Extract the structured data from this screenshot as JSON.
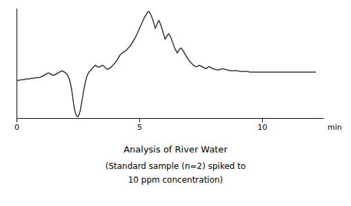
{
  "chart_data": {
    "type": "line",
    "title": "Analysis of River Water",
    "subtitle": [
      "(Standard sample (n=2) spiked to",
      "10 ppm concentration)"
    ],
    "xlabel": "min",
    "color": "#333333",
    "xlim": [
      0,
      12.5
    ],
    "ylim": [
      -0.55,
      1.05
    ],
    "xticks": [
      0,
      5,
      10
    ],
    "tick_labels": "x",
    "grid": false,
    "x": [
      0.0,
      0.1,
      0.2,
      0.3,
      0.4,
      0.5,
      0.6,
      0.7,
      0.8,
      0.9,
      1.0,
      1.05,
      1.1,
      1.15,
      1.2,
      1.25,
      1.3,
      1.35,
      1.4,
      1.45,
      1.5,
      1.55,
      1.6,
      1.65,
      1.7,
      1.75,
      1.8,
      1.85,
      1.9,
      1.95,
      2.0,
      2.05,
      2.1,
      2.15,
      2.2,
      2.25,
      2.3,
      2.35,
      2.4,
      2.45,
      2.5,
      2.55,
      2.6,
      2.65,
      2.7,
      2.75,
      2.8,
      2.85,
      2.9,
      2.95,
      3.0,
      3.05,
      3.1,
      3.15,
      3.2,
      3.25,
      3.3,
      3.35,
      3.4,
      3.45,
      3.5,
      3.55,
      3.6,
      3.65,
      3.7,
      3.75,
      3.8,
      3.85,
      3.9,
      3.95,
      4.0,
      4.05,
      4.1,
      4.15,
      4.2,
      4.25,
      4.3,
      4.35,
      4.4,
      4.45,
      4.5,
      4.55,
      4.6,
      4.65,
      4.7,
      4.75,
      4.8,
      4.85,
      4.9,
      4.95,
      5.0,
      5.05,
      5.1,
      5.15,
      5.2,
      5.25,
      5.3,
      5.35,
      5.4,
      5.45,
      5.5,
      5.55,
      5.6,
      5.65,
      5.7,
      5.75,
      5.8,
      5.85,
      5.9,
      5.95,
      6.0,
      6.05,
      6.1,
      6.15,
      6.2,
      6.25,
      6.3,
      6.35,
      6.4,
      6.45,
      6.5,
      6.55,
      6.6,
      6.65,
      6.7,
      6.75,
      6.8,
      6.85,
      6.9,
      6.95,
      7.0,
      7.05,
      7.1,
      7.15,
      7.2,
      7.25,
      7.3,
      7.35,
      7.4,
      7.45,
      7.5,
      7.55,
      7.6,
      7.65,
      7.7,
      7.75,
      7.8,
      7.85,
      7.9,
      7.95,
      8.0,
      8.1,
      8.2,
      8.3,
      8.4,
      8.5,
      8.6,
      8.7,
      8.8,
      8.9,
      9.0,
      9.1,
      9.2,
      9.3,
      9.4,
      9.5,
      9.6,
      9.7,
      9.8,
      9.9,
      10.0,
      10.1,
      10.2,
      10.3,
      10.4,
      10.5,
      10.6,
      10.7,
      10.8,
      10.9,
      11.0,
      11.1,
      11.2,
      11.3,
      11.4,
      11.5,
      11.6,
      11.7,
      11.8,
      11.9,
      12.0,
      12.2
    ],
    "values": [
      0.0,
      0.0,
      0.01,
      0.01,
      0.02,
      0.02,
      0.03,
      0.03,
      0.04,
      0.04,
      0.05,
      0.06,
      0.07,
      0.08,
      0.09,
      0.1,
      0.11,
      0.1,
      0.09,
      0.08,
      0.07,
      0.08,
      0.09,
      0.1,
      0.11,
      0.12,
      0.13,
      0.14,
      0.13,
      0.12,
      0.11,
      0.09,
      0.06,
      0.02,
      -0.05,
      -0.15,
      -0.28,
      -0.4,
      -0.48,
      -0.52,
      -0.53,
      -0.5,
      -0.43,
      -0.33,
      -0.22,
      -0.12,
      -0.03,
      0.04,
      0.09,
      0.12,
      0.14,
      0.16,
      0.18,
      0.2,
      0.22,
      0.21,
      0.2,
      0.19,
      0.2,
      0.21,
      0.22,
      0.21,
      0.19,
      0.17,
      0.16,
      0.17,
      0.18,
      0.19,
      0.21,
      0.23,
      0.25,
      0.27,
      0.3,
      0.33,
      0.36,
      0.38,
      0.4,
      0.41,
      0.42,
      0.43,
      0.45,
      0.47,
      0.49,
      0.51,
      0.54,
      0.57,
      0.6,
      0.63,
      0.67,
      0.71,
      0.75,
      0.79,
      0.83,
      0.87,
      0.91,
      0.94,
      0.97,
      1.0,
      1.0,
      0.97,
      0.93,
      0.88,
      0.82,
      0.76,
      0.8,
      0.84,
      0.87,
      0.83,
      0.78,
      0.72,
      0.66,
      0.6,
      0.63,
      0.66,
      0.68,
      0.65,
      0.61,
      0.56,
      0.51,
      0.46,
      0.43,
      0.4,
      0.43,
      0.46,
      0.47,
      0.45,
      0.42,
      0.39,
      0.36,
      0.33,
      0.3,
      0.28,
      0.26,
      0.24,
      0.22,
      0.21,
      0.2,
      0.2,
      0.21,
      0.22,
      0.21,
      0.2,
      0.19,
      0.18,
      0.17,
      0.18,
      0.19,
      0.2,
      0.19,
      0.18,
      0.17,
      0.16,
      0.15,
      0.16,
      0.17,
      0.16,
      0.15,
      0.14,
      0.14,
      0.14,
      0.14,
      0.13,
      0.13,
      0.13,
      0.13,
      0.12,
      0.12,
      0.12,
      0.12,
      0.12,
      0.12,
      0.12,
      0.12,
      0.12,
      0.12,
      0.12,
      0.12,
      0.12,
      0.12,
      0.12,
      0.12,
      0.12,
      0.12,
      0.12,
      0.12,
      0.12,
      0.12,
      0.12,
      0.12,
      0.12,
      0.12,
      0.12
    ]
  }
}
